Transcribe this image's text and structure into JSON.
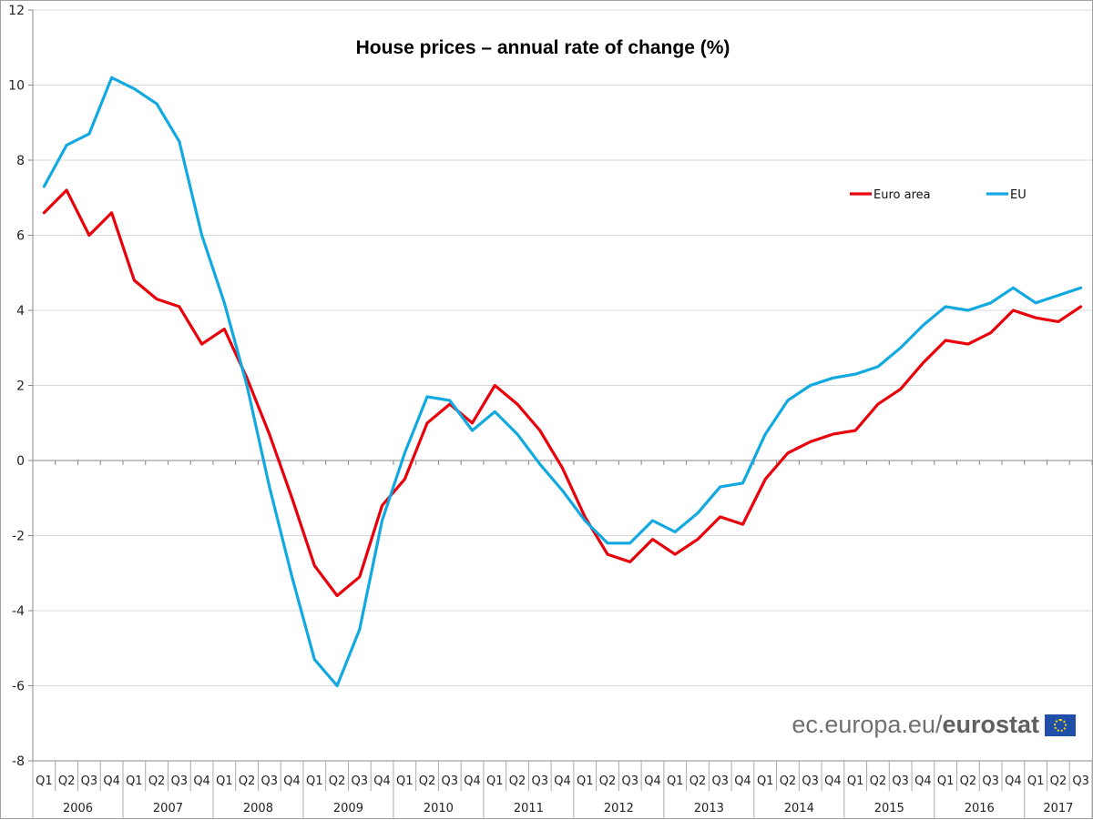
{
  "chart_data": {
    "type": "line",
    "title": "House prices – annual rate of change (%)",
    "xlabel": "",
    "ylabel": "",
    "ylim": [
      -8,
      12
    ],
    "yticks": [
      -8,
      -6,
      -4,
      -2,
      0,
      2,
      4,
      6,
      8,
      10,
      12
    ],
    "grid": true,
    "legend_position": "top-right",
    "years": [
      "2006",
      "2007",
      "2008",
      "2009",
      "2010",
      "2011",
      "2012",
      "2013",
      "2014",
      "2015",
      "2016",
      "2017"
    ],
    "quarters_per_year": [
      4,
      4,
      4,
      4,
      4,
      4,
      4,
      4,
      4,
      4,
      4,
      3
    ],
    "x": [
      "2006Q1",
      "2006Q2",
      "2006Q3",
      "2006Q4",
      "2007Q1",
      "2007Q2",
      "2007Q3",
      "2007Q4",
      "2008Q1",
      "2008Q2",
      "2008Q3",
      "2008Q4",
      "2009Q1",
      "2009Q2",
      "2009Q3",
      "2009Q4",
      "2010Q1",
      "2010Q2",
      "2010Q3",
      "2010Q4",
      "2011Q1",
      "2011Q2",
      "2011Q3",
      "2011Q4",
      "2012Q1",
      "2012Q2",
      "2012Q3",
      "2012Q4",
      "2013Q1",
      "2013Q2",
      "2013Q3",
      "2013Q4",
      "2014Q1",
      "2014Q2",
      "2014Q3",
      "2014Q4",
      "2015Q1",
      "2015Q2",
      "2015Q3",
      "2015Q4",
      "2016Q1",
      "2016Q2",
      "2016Q3",
      "2016Q4",
      "2017Q1",
      "2017Q2",
      "2017Q3"
    ],
    "quarter_labels": [
      "Q1",
      "Q2",
      "Q3",
      "Q4"
    ],
    "series": [
      {
        "name": "Euro area",
        "color": "#e8000b",
        "values": [
          6.6,
          7.2,
          6.0,
          6.6,
          4.8,
          4.3,
          4.1,
          3.1,
          3.5,
          2.2,
          0.7,
          -1.0,
          -2.8,
          -3.6,
          -3.1,
          -1.2,
          -0.5,
          1.0,
          1.5,
          1.0,
          2.0,
          1.5,
          0.8,
          -0.2,
          -1.5,
          -2.5,
          -2.7,
          -2.1,
          -2.5,
          -2.1,
          -1.5,
          -1.7,
          -0.5,
          0.2,
          0.5,
          0.7,
          0.8,
          1.5,
          1.9,
          2.6,
          3.2,
          3.1,
          3.4,
          4.0,
          3.8,
          3.7,
          4.1
        ]
      },
      {
        "name": "EU",
        "color": "#12a9e0",
        "values": [
          7.3,
          8.4,
          8.7,
          10.2,
          9.9,
          9.5,
          8.5,
          6.0,
          4.2,
          2.0,
          -0.7,
          -3.1,
          -5.3,
          -6.0,
          -4.5,
          -1.6,
          0.2,
          1.7,
          1.6,
          0.8,
          1.3,
          0.7,
          -0.1,
          -0.8,
          -1.6,
          -2.2,
          -2.2,
          -1.6,
          -1.9,
          -1.4,
          -0.7,
          -0.6,
          0.7,
          1.6,
          2.0,
          2.2,
          2.3,
          2.5,
          3.0,
          3.6,
          4.1,
          4.0,
          4.2,
          4.6,
          4.2,
          4.4,
          4.6
        ]
      }
    ]
  },
  "branding": {
    "url_prefix": "ec.europa.eu/",
    "brand_name": "eurostat",
    "flag_icon": "eu-flag-icon"
  }
}
